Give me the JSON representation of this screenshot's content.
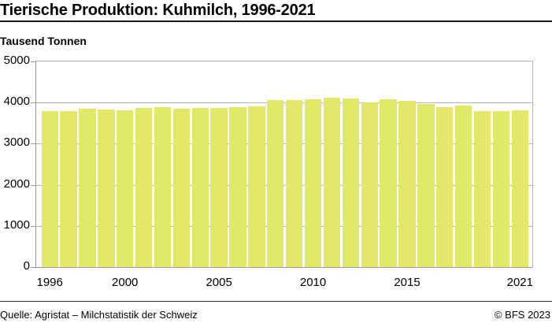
{
  "header": {
    "title": "Tierische Produktion: Kuhmilch, 1996-2021",
    "unit_label": "Tausend Tonnen"
  },
  "footer": {
    "source": "Quelle: Agristat – Milchstatistik der Schweiz",
    "copyright": "© BFS 2023"
  },
  "colors": {
    "bar": "#e2e868",
    "grid": "#b3b3b3",
    "rule": "#1a1a1a"
  },
  "axis": {
    "y_ticks": [
      "0",
      "1000",
      "2000",
      "3000",
      "4000",
      "5000"
    ],
    "x_ticks": [
      {
        "label": "1996",
        "index": 0
      },
      {
        "label": "2000",
        "index": 4
      },
      {
        "label": "2005",
        "index": 9
      },
      {
        "label": "2010",
        "index": 14
      },
      {
        "label": "2015",
        "index": 19
      },
      {
        "label": "2021",
        "index": 25
      }
    ]
  },
  "chart_data": {
    "type": "bar",
    "title": "Tierische Produktion: Kuhmilch, 1996-2021",
    "xlabel": "",
    "ylabel": "Tausend Tonnen",
    "ylim": [
      0,
      5000
    ],
    "grid": true,
    "legend": "none",
    "categories": [
      "1996",
      "1997",
      "1998",
      "1999",
      "2000",
      "2001",
      "2002",
      "2003",
      "2004",
      "2005",
      "2006",
      "2007",
      "2008",
      "2009",
      "2010",
      "2011",
      "2012",
      "2013",
      "2014",
      "2015",
      "2016",
      "2017",
      "2018",
      "2019",
      "2020",
      "2021"
    ],
    "values": [
      3800,
      3800,
      3855,
      3840,
      3820,
      3870,
      3880,
      3850,
      3875,
      3875,
      3880,
      3910,
      4070,
      4070,
      4080,
      4120,
      4095,
      4010,
      4075,
      4045,
      3960,
      3890,
      3920,
      3800,
      3785,
      3820
    ],
    "series": [
      {
        "name": "Kuhmilch",
        "values": [
          3800,
          3800,
          3855,
          3840,
          3820,
          3870,
          3880,
          3850,
          3875,
          3875,
          3880,
          3910,
          4070,
          4070,
          4080,
          4120,
          4095,
          4010,
          4075,
          4045,
          3960,
          3890,
          3920,
          3800,
          3785,
          3820
        ]
      }
    ],
    "source": "Quelle: Agristat – Milchstatistik der Schweiz"
  }
}
